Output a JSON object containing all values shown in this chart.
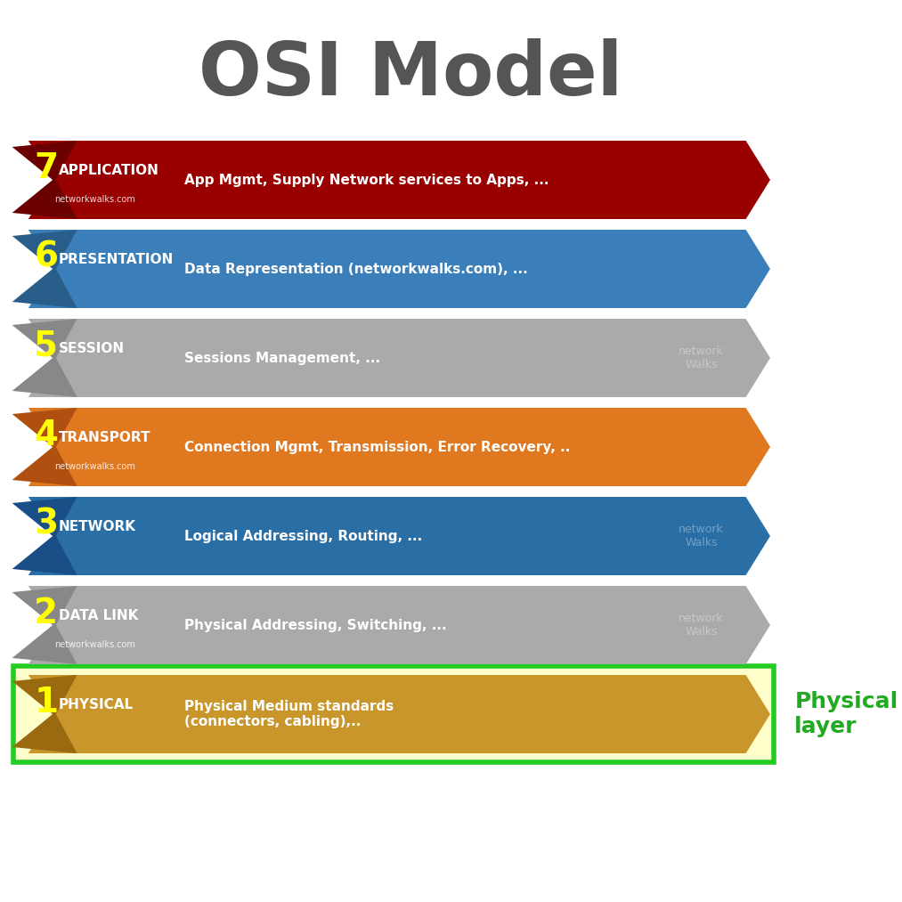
{
  "title": "OSI Model",
  "title_color": "#555555",
  "title_fontsize": 60,
  "background_color": "#ffffff",
  "layers": [
    {
      "num": "7",
      "name": "APPLICATION",
      "desc": "App Mgmt, Supply Network services to Apps, ...",
      "color": "#990000",
      "dark_color": "#6b0000",
      "text_color": "#ffffff",
      "num_color": "#ffff00",
      "watermark": null,
      "sub_text": "networkwalks.com",
      "highlight_box": false
    },
    {
      "num": "6",
      "name": "PRESENTATION",
      "desc": "Data Representation (networkwalks.com), ...",
      "color": "#3a7eba",
      "dark_color": "#2a5e8a",
      "text_color": "#ffffff",
      "num_color": "#ffff00",
      "watermark": null,
      "sub_text": null,
      "highlight_box": false
    },
    {
      "num": "5",
      "name": "SESSION",
      "desc": "Sessions Management, ...",
      "color": "#aaaaaa",
      "dark_color": "#888888",
      "text_color": "#ffffff",
      "num_color": "#ffff00",
      "watermark": "network\nWalks",
      "sub_text": null,
      "highlight_box": false
    },
    {
      "num": "4",
      "name": "TRANSPORT",
      "desc": "Connection Mgmt, Transmission, Error Recovery, ..",
      "color": "#e07820",
      "dark_color": "#b05010",
      "text_color": "#ffffff",
      "num_color": "#ffff00",
      "watermark": null,
      "sub_text": "networkwalks.com",
      "highlight_box": false
    },
    {
      "num": "3",
      "name": "NETWORK",
      "desc": "Logical Addressing, Routing, ...",
      "color": "#2a6ea6",
      "dark_color": "#1a4e86",
      "text_color": "#ffffff",
      "num_color": "#ffff00",
      "watermark": "network\nWalks",
      "sub_text": null,
      "highlight_box": false
    },
    {
      "num": "2",
      "name": "DATA LINK",
      "desc": "Physical Addressing, Switching, ...",
      "color": "#aaaaaa",
      "dark_color": "#888888",
      "text_color": "#ffffff",
      "num_color": "#ffff00",
      "watermark": "network\nWalks",
      "sub_text": "networkwalks.com",
      "highlight_box": false
    },
    {
      "num": "1",
      "name": "PHYSICAL",
      "desc": "Physical Medium standards\n(connectors, cabling),..",
      "color": "#c8962a",
      "dark_color": "#9a6a10",
      "text_color": "#ffffff",
      "num_color": "#ffff00",
      "watermark": null,
      "sub_text": null,
      "highlight_box": true,
      "highlight_bg": "#ffffcc",
      "highlight_border": "#22cc22",
      "label_text": "Physical\nlayer",
      "label_color": "#22aa22"
    }
  ]
}
